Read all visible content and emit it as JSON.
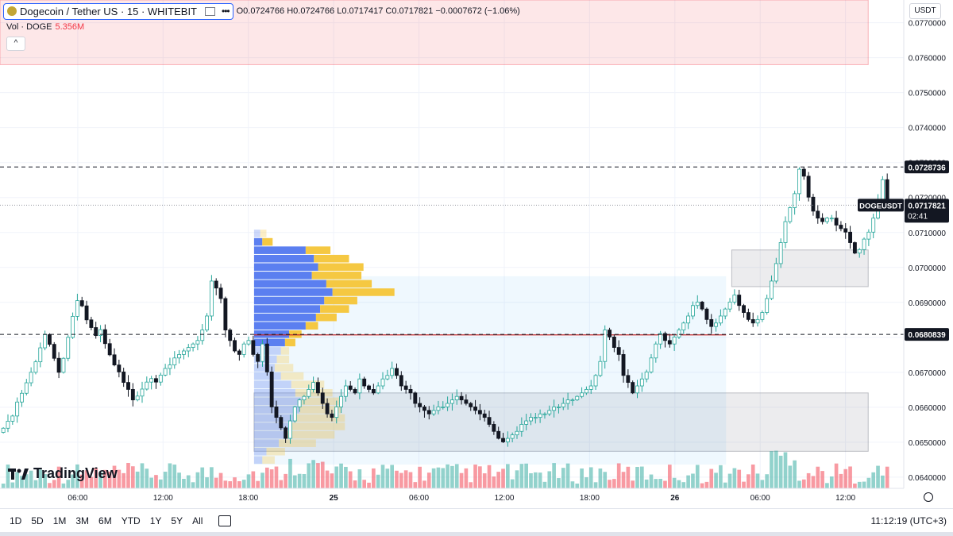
{
  "legend": {
    "symbol": "Dogecoin / Tether US · 15 · WHITEBIT",
    "ohlc": "O0.0724766 H0.0724766 L0.0717417 C0.0717821 −0.0007672 (−1.06%)",
    "vol_label": "Vol · DOGE",
    "vol_value": "5.356M",
    "collapse_glyph": "^"
  },
  "currency": "USDT",
  "branding": "TradingView",
  "time_ranges": [
    "1D",
    "5D",
    "1M",
    "3M",
    "6M",
    "YTD",
    "1Y",
    "5Y",
    "All"
  ],
  "clock": "11:12:19 (UTC+3)",
  "colors": {
    "up": "#26a69a",
    "down": "#131722",
    "vol_up": "#26a69a",
    "vol_down": "#f23645",
    "accent": "#2962ff",
    "poc": "#c62828",
    "vp_blue": "#5b7ff0",
    "vp_yellow": "#f5c842"
  },
  "chart_data": {
    "type": "candlestick",
    "symbol_label": "DOGEUSDT",
    "last_price": "0.0717821",
    "countdown": "02:41",
    "marked_levels": [
      {
        "value": 0.0728736,
        "label": "0.0728736",
        "style": "dashed"
      },
      {
        "value": 0.0680839,
        "label": "0.0680839",
        "style": "dashed"
      }
    ],
    "y_ticks": [
      "0.0770000",
      "0.0760000",
      "0.0750000",
      "0.0740000",
      "0.0730000",
      "0.0720000",
      "0.0710000",
      "0.0700000",
      "0.0690000",
      "0.0680000",
      "0.0670000",
      "0.0660000",
      "0.0650000",
      "0.0640000"
    ],
    "y_tick_values": [
      0.077,
      0.076,
      0.075,
      0.074,
      0.073,
      0.072,
      0.071,
      0.07,
      0.069,
      0.068,
      0.067,
      0.066,
      0.065,
      0.064
    ],
    "ylim": [
      0.06368,
      0.07765
    ],
    "x_ticks": [
      "06:00",
      "12:00",
      "18:00",
      "25",
      "06:00",
      "12:00",
      "18:00",
      "26",
      "06:00",
      "12:00"
    ],
    "x_tick_hours": [
      6,
      12,
      18,
      24,
      30,
      36,
      42,
      48,
      54,
      60
    ],
    "xlim_hours": [
      0.53,
      64.1
    ],
    "zones": [
      {
        "from_hour": 0.53,
        "to_hour": 61.6,
        "low": 0.0758,
        "high": 0.07765,
        "color": "red"
      },
      {
        "from_hour": 52.0,
        "to_hour": 61.6,
        "low": 0.06945,
        "high": 0.0705,
        "color": "gray"
      },
      {
        "from_hour": 18.4,
        "to_hour": 61.6,
        "low": 0.06474,
        "high": 0.06641,
        "color": "gray"
      },
      {
        "from_hour": 18.4,
        "to_hour": 51.6,
        "low": 0.06436,
        "high": 0.06975,
        "color": "blue"
      }
    ],
    "poc": {
      "value": 0.06807,
      "from_hour": 18.4,
      "to_hour": 51.6
    },
    "volume_profile": {
      "price_low": 0.06436,
      "row_height": 0.00024,
      "buy": [
        0.4,
        0.6,
        1.2,
        1.5,
        1.8,
        2.0,
        2.2,
        2.3,
        2.0,
        1.8,
        1.3,
        1.0,
        1.1,
        1.3,
        1.5,
        1.7,
        2.5,
        3.0,
        3.2,
        3.4,
        3.8,
        3.5,
        2.8,
        3.1,
        2.9,
        2.5,
        0.4,
        0.3
      ],
      "sell": [
        0.6,
        0.9,
        1.8,
        2.4,
        2.6,
        2.4,
        2.0,
        2.0,
        1.8,
        1.6,
        1.1,
        0.9,
        0.6,
        0.4,
        0.5,
        0.6,
        0.6,
        1.0,
        1.4,
        1.6,
        3.0,
        2.2,
        2.4,
        2.2,
        1.7,
        1.2,
        0.5,
        0.3
      ]
    },
    "closes": [
      0.0654,
      0.0656,
      0.06575,
      0.06615,
      0.0664,
      0.0667,
      0.067,
      0.0673,
      0.0677,
      0.06808,
      0.0678,
      0.0674,
      0.067,
      0.0674,
      0.068,
      0.0686,
      0.06905,
      0.0689,
      0.0685,
      0.06828,
      0.06805,
      0.06822,
      0.06782,
      0.0675,
      0.06721,
      0.06701,
      0.06671,
      0.06651,
      0.06621,
      0.06632,
      0.06652,
      0.06672,
      0.06682,
      0.06672,
      0.06692,
      0.06711,
      0.06721,
      0.06741,
      0.06751,
      0.06761,
      0.06771,
      0.06781,
      0.06791,
      0.06821,
      0.06861,
      0.06961,
      0.06941,
      0.06911,
      0.06821,
      0.06791,
      0.06761,
      0.06751,
      0.06781,
      0.06791,
      0.06751,
      0.06731,
      0.06781,
      0.06701,
      0.06601,
      0.06571,
      0.06541,
      0.06511,
      0.06561,
      0.06601,
      0.06621,
      0.06631,
      0.06651,
      0.06671,
      0.06641,
      0.06611,
      0.06581,
      0.06571,
      0.06601,
      0.06631,
      0.06661,
      0.06651,
      0.06641,
      0.06681,
      0.06661,
      0.06651,
      0.06641,
      0.06661,
      0.06681,
      0.06691,
      0.06711,
      0.06691,
      0.06661,
      0.06651,
      0.06641,
      0.06611,
      0.06601,
      0.06591,
      0.06581,
      0.06591,
      0.06601,
      0.06601,
      0.06611,
      0.06621,
      0.06631,
      0.06621,
      0.06611,
      0.06601,
      0.06591,
      0.06581,
      0.06571,
      0.06551,
      0.06531,
      0.06511,
      0.06501,
      0.06511,
      0.06521,
      0.06531,
      0.06551,
      0.06561,
      0.06571,
      0.06571,
      0.06581,
      0.06581,
      0.06591,
      0.06601,
      0.06601,
      0.06611,
      0.06621,
      0.06621,
      0.06631,
      0.06641,
      0.06651,
      0.06661,
      0.06691,
      0.06731,
      0.06821,
      0.06801,
      0.06771,
      0.06751,
      0.06691,
      0.06671,
      0.06641,
      0.06661,
      0.06681,
      0.06701,
      0.06741,
      0.06781,
      0.06811,
      0.06791,
      0.06781,
      0.06801,
      0.06821,
      0.06841,
      0.06861,
      0.06891,
      0.06901,
      0.06881,
      0.06851,
      0.06831,
      0.06841,
      0.06861,
      0.06881,
      0.06901,
      0.06921,
      0.06891,
      0.06871,
      0.06851,
      0.06841,
      0.06851,
      0.06871,
      0.06911,
      0.06961,
      0.07011,
      0.07071,
      0.07131,
      0.07171,
      0.07211,
      0.07281,
      0.07261,
      0.07201,
      0.07161,
      0.07141,
      0.07131,
      0.07141,
      0.07141,
      0.07121,
      0.07111,
      0.07101,
      0.07071,
      0.07041,
      0.07051,
      0.07081,
      0.07101,
      0.07141,
      0.07191,
      0.07251,
      0.0718
    ]
  }
}
